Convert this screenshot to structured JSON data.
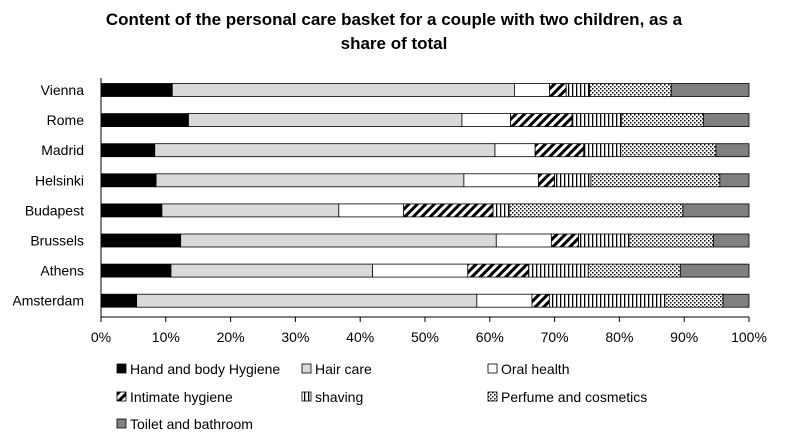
{
  "chart_data": {
    "type": "bar",
    "orientation": "horizontal",
    "stacked": true,
    "percent": true,
    "title_lines": [
      "Content of the personal care basket for a couple with two children, as a",
      "share of total"
    ],
    "categories": [
      "Vienna",
      "Rome",
      "Madrid",
      "Helsinki",
      "Budapest",
      "Brussels",
      "Athens",
      "Amsterdam"
    ],
    "series": [
      {
        "name": "Hand and body Hygiene",
        "pattern": "solid-black",
        "values": [
          11.0,
          13.5,
          8.3,
          8.5,
          9.4,
          12.3,
          10.8,
          5.5
        ]
      },
      {
        "name": "Hair care",
        "pattern": "light-gray",
        "values": [
          52.8,
          42.2,
          52.5,
          47.5,
          27.3,
          48.7,
          31.1,
          52.5
        ]
      },
      {
        "name": "Oral health",
        "pattern": "white",
        "values": [
          5.4,
          7.5,
          6.2,
          11.5,
          10.0,
          8.5,
          14.7,
          8.5
        ]
      },
      {
        "name": "Intimate hygiene",
        "pattern": "diagonal-stripes",
        "values": [
          2.6,
          9.5,
          7.5,
          2.5,
          13.8,
          4.2,
          9.4,
          2.7
        ]
      },
      {
        "name": "shaving",
        "pattern": "vertical-stripes",
        "values": [
          3.6,
          7.6,
          5.7,
          5.6,
          2.5,
          7.8,
          9.2,
          17.8
        ]
      },
      {
        "name": "Perfume and cosmetics",
        "pattern": "dots",
        "values": [
          12.6,
          12.7,
          14.7,
          19.9,
          26.8,
          13.0,
          14.2,
          9.0
        ]
      },
      {
        "name": "Toilet and bathroom",
        "pattern": "dark-gray",
        "values": [
          12.0,
          7.0,
          5.1,
          4.5,
          10.2,
          5.5,
          10.6,
          4.0
        ]
      }
    ],
    "xlim": [
      0,
      100
    ],
    "xticks": [
      "0%",
      "10%",
      "20%",
      "30%",
      "40%",
      "50%",
      "60%",
      "70%",
      "80%",
      "90%",
      "100%"
    ],
    "grid": false,
    "legend_position": "bottom"
  }
}
